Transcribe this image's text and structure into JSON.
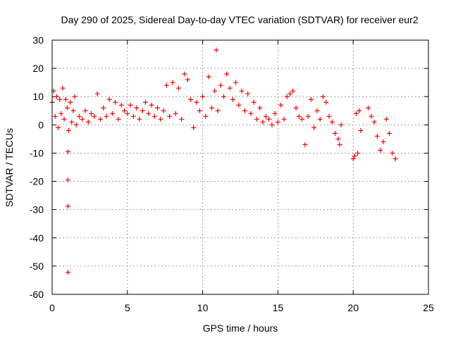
{
  "chart_data": {
    "type": "scatter",
    "title": "Day 290 of 2025, Sidereal Day-to-day VTEC variation (SDTVAR) for receiver eur2",
    "xlabel": "GPS time / hours",
    "ylabel": "SDTVAR / TECUs",
    "xlim": [
      0,
      25
    ],
    "ylim": [
      -60,
      30
    ],
    "xticks": [
      0,
      5,
      10,
      15,
      20,
      25
    ],
    "yticks": [
      -60,
      -50,
      -40,
      -30,
      -20,
      -10,
      0,
      10,
      20,
      30
    ],
    "xtick_labels": [
      "0",
      "5",
      "10",
      "15",
      "20",
      "25"
    ],
    "ytick_labels": [
      "-60",
      "-50",
      "-40",
      "-30",
      "-20",
      "-10",
      "0",
      "10",
      "20",
      "30"
    ],
    "grid": true,
    "marker": "+",
    "color": "#ff0000",
    "series": [
      {
        "name": "eur2",
        "x": [
          0.0,
          0.1,
          0.2,
          0.3,
          0.4,
          0.5,
          0.6,
          0.7,
          0.8,
          0.9,
          1.0,
          1.1,
          1.2,
          1.3,
          1.4,
          1.5,
          1.6,
          1.8,
          2.0,
          2.2,
          2.4,
          2.6,
          2.8,
          3.0,
          3.2,
          3.4,
          3.6,
          3.8,
          4.0,
          4.2,
          4.4,
          4.6,
          4.8,
          5.0,
          5.2,
          5.4,
          5.6,
          5.8,
          6.0,
          6.2,
          6.4,
          6.6,
          6.8,
          7.0,
          7.2,
          7.4,
          7.6,
          7.8,
          8.0,
          8.2,
          8.4,
          8.6,
          8.8,
          9.0,
          9.2,
          9.4,
          9.6,
          9.8,
          10.0,
          10.2,
          10.4,
          10.6,
          10.8,
          11.0,
          11.2,
          11.4,
          11.6,
          11.8,
          12.0,
          12.2,
          12.4,
          12.6,
          12.8,
          13.0,
          13.2,
          13.4,
          13.6,
          13.8,
          14.0,
          14.2,
          14.4,
          14.6,
          14.8,
          15.0,
          15.2,
          15.4,
          15.6,
          15.8,
          16.0,
          16.2,
          16.4,
          16.6,
          16.8,
          17.0,
          17.2,
          17.4,
          17.6,
          17.8,
          18.0,
          18.2,
          18.4,
          18.6,
          18.8,
          19.0,
          19.1,
          19.2,
          20.0,
          20.1,
          20.2,
          20.3,
          20.4,
          20.5,
          21.0,
          21.2,
          21.4,
          21.6,
          21.8,
          22.0,
          22.2,
          22.4,
          22.6,
          22.8
        ],
        "y": [
          8,
          12,
          3,
          10,
          -1,
          9,
          4,
          13,
          2,
          9,
          6,
          -2,
          8,
          1,
          5,
          10,
          0,
          3,
          2,
          5,
          1,
          4,
          3,
          11,
          2,
          6,
          3,
          9,
          4,
          8,
          2,
          7,
          5,
          4,
          7,
          3,
          6,
          2,
          5,
          8,
          4,
          7,
          3,
          6,
          2,
          5,
          14,
          3,
          15,
          4,
          13,
          2,
          18,
          16,
          9,
          -1,
          8,
          5,
          10,
          3,
          17,
          6,
          12,
          5,
          14,
          10,
          18,
          13,
          9,
          15,
          7,
          12,
          5,
          11,
          4,
          8,
          2,
          6,
          1,
          3,
          2,
          0,
          4,
          1,
          7,
          2,
          10,
          11,
          12,
          6,
          3,
          2,
          -7,
          3,
          9,
          -1,
          5,
          2,
          10,
          8,
          3,
          1,
          -3,
          -5,
          -7,
          0,
          -12,
          -11,
          4,
          -10,
          5,
          -2,
          6,
          3,
          1,
          -4,
          -9,
          -6,
          2,
          -3,
          -10,
          -12
        ],
        "outliers": [
          {
            "x": 1.05,
            "y": -9.5
          },
          {
            "x": 1.05,
            "y": -19.5
          },
          {
            "x": 1.05,
            "y": -28.8
          },
          {
            "x": 1.05,
            "y": -52.2
          },
          {
            "x": 10.9,
            "y": 26.5
          }
        ]
      }
    ]
  }
}
